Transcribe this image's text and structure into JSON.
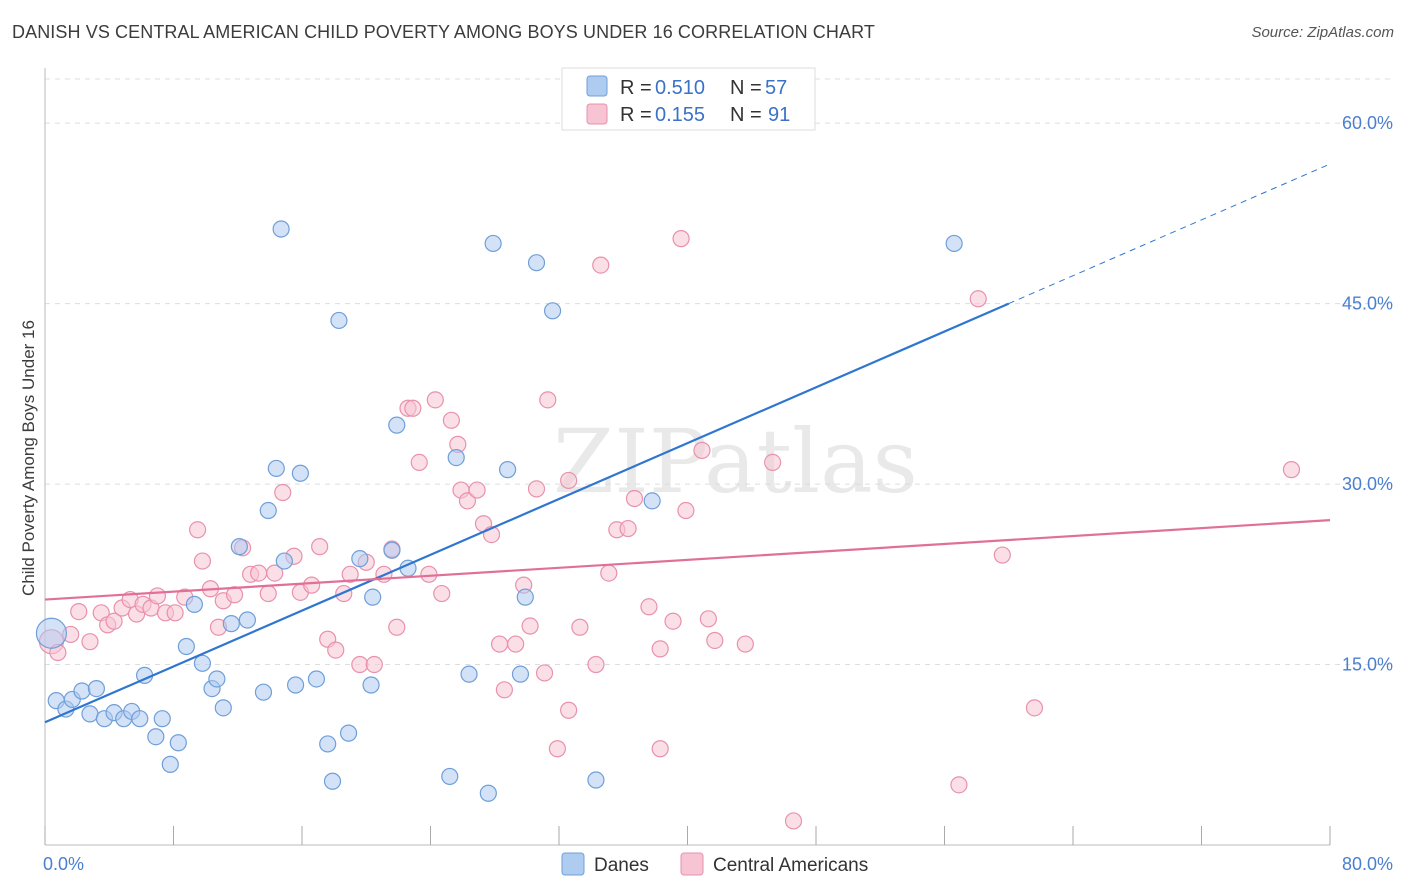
{
  "title": "DANISH VS CENTRAL AMERICAN CHILD POVERTY AMONG BOYS UNDER 16 CORRELATION CHART",
  "source": "Source: ZipAtlas.com",
  "watermark": "ZIPatlas",
  "legend_top": {
    "rows": [
      {
        "r_label": "R =",
        "r_value": "0.510",
        "n_label": "N =",
        "n_value": "57"
      },
      {
        "r_label": "R =",
        "r_value": "0.155",
        "n_label": "N =",
        "n_value": "91"
      }
    ]
  },
  "legend_bottom": [
    "Danes",
    "Central Americans"
  ],
  "colors": {
    "danes_fill": "#aecbf0",
    "danes_stroke": "#6f9fd8",
    "danes_line": "#2f76d0",
    "central_fill": "#f7c4d3",
    "central_stroke": "#e991ad",
    "central_line": "#e07098",
    "axis_text": "#4a7fcf",
    "grid": "#dddddd"
  },
  "chart_data": {
    "type": "scatter",
    "title": "DANISH VS CENTRAL AMERICAN CHILD POVERTY AMONG BOYS UNDER 16 CORRELATION CHART",
    "xlabel": "",
    "ylabel": "Child Poverty Among Boys Under 16",
    "xlim": [
      0,
      80
    ],
    "ylim": [
      0,
      64
    ],
    "x_tick_labels": [
      "0.0%",
      "80.0%"
    ],
    "y_tick_labels": [
      "15.0%",
      "30.0%",
      "45.0%",
      "60.0%"
    ],
    "y_ticks": [
      15,
      30,
      45,
      60
    ],
    "grid": true,
    "legend_position": "top-center",
    "series": [
      {
        "name": "Danes",
        "R": 0.51,
        "N": 57,
        "trend": {
          "x0": 0,
          "y0": 10.2,
          "x1": 60,
          "y1": 45.0,
          "dashed_to_x": 80,
          "dashed_to_y": 56.6
        },
        "points": [
          [
            0.4,
            17.6
          ],
          [
            0.7,
            12.0
          ],
          [
            1.3,
            11.3
          ],
          [
            1.7,
            12.1
          ],
          [
            2.3,
            12.8
          ],
          [
            2.8,
            10.9
          ],
          [
            3.2,
            13.0
          ],
          [
            3.7,
            10.5
          ],
          [
            4.3,
            11.0
          ],
          [
            4.9,
            10.5
          ],
          [
            5.4,
            11.1
          ],
          [
            5.9,
            10.5
          ],
          [
            6.2,
            14.1
          ],
          [
            6.9,
            9.0
          ],
          [
            7.3,
            10.5
          ],
          [
            7.8,
            6.7
          ],
          [
            8.3,
            8.5
          ],
          [
            8.8,
            16.5
          ],
          [
            9.3,
            20.0
          ],
          [
            9.8,
            15.1
          ],
          [
            10.4,
            13.0
          ],
          [
            10.7,
            13.8
          ],
          [
            11.1,
            11.4
          ],
          [
            11.6,
            18.4
          ],
          [
            12.1,
            24.8
          ],
          [
            12.6,
            18.7
          ],
          [
            13.6,
            12.7
          ],
          [
            13.9,
            27.8
          ],
          [
            14.4,
            31.3
          ],
          [
            14.7,
            51.2
          ],
          [
            14.9,
            23.6
          ],
          [
            15.6,
            13.3
          ],
          [
            15.9,
            30.9
          ],
          [
            16.9,
            13.8
          ],
          [
            17.6,
            8.4
          ],
          [
            17.9,
            5.3
          ],
          [
            18.3,
            43.6
          ],
          [
            18.9,
            9.3
          ],
          [
            19.6,
            23.8
          ],
          [
            20.3,
            13.3
          ],
          [
            20.4,
            20.6
          ],
          [
            21.6,
            24.5
          ],
          [
            21.9,
            34.9
          ],
          [
            22.6,
            23.0
          ],
          [
            25.2,
            5.7
          ],
          [
            25.6,
            32.2
          ],
          [
            26.4,
            14.2
          ],
          [
            27.6,
            4.3
          ],
          [
            27.9,
            50.0
          ],
          [
            28.8,
            31.2
          ],
          [
            29.6,
            14.2
          ],
          [
            29.9,
            20.6
          ],
          [
            30.6,
            48.4
          ],
          [
            31.6,
            44.4
          ],
          [
            34.3,
            5.4
          ],
          [
            37.8,
            28.6
          ],
          [
            56.6,
            50.0
          ]
        ]
      },
      {
        "name": "Central Americans",
        "R": 0.155,
        "N": 91,
        "trend": {
          "x0": 0,
          "y0": 20.4,
          "x1": 80,
          "y1": 27.0
        },
        "points": [
          [
            0.4,
            16.9
          ],
          [
            0.8,
            16.0
          ],
          [
            1.6,
            17.5
          ],
          [
            2.1,
            19.4
          ],
          [
            2.8,
            16.9
          ],
          [
            3.5,
            19.3
          ],
          [
            3.9,
            18.3
          ],
          [
            4.3,
            18.6
          ],
          [
            4.8,
            19.7
          ],
          [
            5.3,
            20.4
          ],
          [
            5.7,
            19.2
          ],
          [
            6.1,
            20.0
          ],
          [
            6.6,
            19.7
          ],
          [
            7.0,
            20.7
          ],
          [
            7.5,
            19.3
          ],
          [
            8.1,
            19.3
          ],
          [
            8.7,
            20.6
          ],
          [
            9.5,
            26.2
          ],
          [
            9.8,
            23.6
          ],
          [
            10.3,
            21.3
          ],
          [
            10.8,
            18.1
          ],
          [
            11.1,
            20.3
          ],
          [
            11.8,
            20.8
          ],
          [
            12.3,
            24.7
          ],
          [
            12.8,
            22.5
          ],
          [
            13.3,
            22.6
          ],
          [
            13.9,
            20.9
          ],
          [
            14.3,
            22.6
          ],
          [
            14.8,
            29.3
          ],
          [
            15.5,
            24.0
          ],
          [
            15.9,
            21.0
          ],
          [
            16.6,
            21.6
          ],
          [
            17.1,
            24.8
          ],
          [
            17.6,
            17.1
          ],
          [
            18.1,
            16.2
          ],
          [
            18.6,
            20.9
          ],
          [
            19.0,
            22.5
          ],
          [
            19.6,
            15.0
          ],
          [
            20.0,
            23.5
          ],
          [
            20.5,
            15.0
          ],
          [
            21.1,
            22.5
          ],
          [
            21.6,
            24.6
          ],
          [
            21.9,
            18.1
          ],
          [
            22.6,
            36.3
          ],
          [
            22.9,
            36.3
          ],
          [
            23.3,
            31.8
          ],
          [
            23.9,
            22.5
          ],
          [
            24.3,
            37.0
          ],
          [
            24.7,
            20.9
          ],
          [
            25.3,
            35.3
          ],
          [
            25.7,
            33.3
          ],
          [
            25.9,
            29.5
          ],
          [
            26.3,
            28.6
          ],
          [
            26.9,
            29.5
          ],
          [
            27.3,
            26.7
          ],
          [
            27.8,
            25.8
          ],
          [
            28.3,
            16.7
          ],
          [
            28.6,
            12.9
          ],
          [
            29.3,
            16.7
          ],
          [
            29.8,
            21.6
          ],
          [
            30.2,
            18.2
          ],
          [
            30.6,
            29.6
          ],
          [
            31.1,
            14.3
          ],
          [
            31.3,
            37.0
          ],
          [
            31.9,
            8.0
          ],
          [
            32.6,
            30.3
          ],
          [
            32.6,
            11.2
          ],
          [
            33.3,
            18.1
          ],
          [
            34.3,
            15.0
          ],
          [
            34.6,
            48.2
          ],
          [
            35.1,
            22.6
          ],
          [
            35.6,
            26.2
          ],
          [
            36.3,
            26.3
          ],
          [
            36.7,
            28.8
          ],
          [
            37.6,
            19.8
          ],
          [
            38.3,
            8.0
          ],
          [
            38.3,
            16.3
          ],
          [
            39.1,
            18.6
          ],
          [
            39.6,
            50.4
          ],
          [
            39.9,
            27.8
          ],
          [
            40.9,
            32.8
          ],
          [
            41.3,
            18.8
          ],
          [
            41.7,
            17.0
          ],
          [
            43.6,
            16.7
          ],
          [
            45.3,
            31.8
          ],
          [
            46.6,
            2.0
          ],
          [
            56.9,
            5.0
          ],
          [
            58.1,
            45.4
          ],
          [
            59.6,
            24.1
          ],
          [
            61.6,
            11.4
          ],
          [
            77.6,
            31.2
          ]
        ]
      }
    ]
  }
}
